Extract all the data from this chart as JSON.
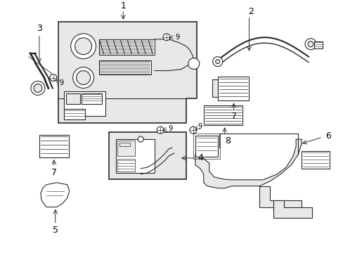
{
  "background_color": "#ffffff",
  "line_color": "#2a2a2a",
  "label_color": "#000000",
  "fig_width": 4.89,
  "fig_height": 3.6,
  "dpi": 100,
  "shade_color": "#d8d8d8",
  "shade_color2": "#e8e8e8"
}
